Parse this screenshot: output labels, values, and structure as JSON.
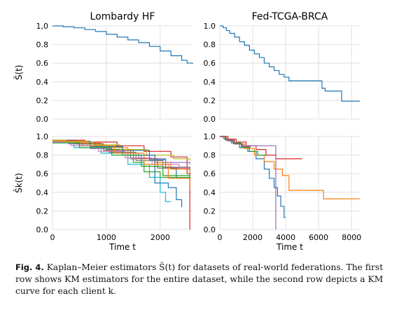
{
  "caption": {
    "label": "Fig. 4.",
    "text": "Kaplan–Meier estimators Ŝ(t) for datasets of real-world federations. The first row shows KM estimators for the entire dataset, while the second row depicts a KM curve for each client k."
  },
  "chart_data": [
    {
      "type": "line",
      "title": "Lombardy HF",
      "xlabel": "",
      "ylabel": "Ŝ(t)",
      "xlim": [
        0,
        2600
      ],
      "ylim": [
        0.0,
        1.0
      ],
      "xticks": [
        1000,
        2000
      ],
      "yticks": [
        "0.0",
        "0.2",
        "0.4",
        "0.6",
        "0.8",
        "1,0"
      ],
      "grid": true,
      "step": true,
      "series": [
        {
          "color": "#1f77b4",
          "x": [
            0,
            200,
            400,
            600,
            800,
            1000,
            1200,
            1400,
            1600,
            1800,
            2000,
            2200,
            2400,
            2500,
            2600
          ],
          "y": [
            1.0,
            0.99,
            0.98,
            0.96,
            0.94,
            0.91,
            0.88,
            0.85,
            0.82,
            0.78,
            0.73,
            0.68,
            0.63,
            0.6,
            0.59
          ]
        }
      ]
    },
    {
      "type": "line",
      "title": "Fed-TCGA-BRCA",
      "xlabel": "",
      "ylabel": "",
      "xlim": [
        0,
        8500
      ],
      "ylim": [
        0.0,
        1.0
      ],
      "xticks": [
        0,
        2000,
        4000,
        6000,
        8000
      ],
      "yticks": [
        "0.0",
        "0.2",
        "0.4",
        "0.6",
        "0.8",
        "1.0"
      ],
      "grid": true,
      "step": true,
      "series": [
        {
          "color": "#1f77b4",
          "x": [
            0,
            200,
            400,
            600,
            900,
            1200,
            1500,
            1800,
            2100,
            2400,
            2700,
            3000,
            3300,
            3600,
            3900,
            4200,
            6200,
            6400,
            7400,
            8500
          ],
          "y": [
            1.0,
            0.98,
            0.95,
            0.92,
            0.88,
            0.83,
            0.79,
            0.74,
            0.7,
            0.66,
            0.6,
            0.56,
            0.52,
            0.48,
            0.45,
            0.41,
            0.33,
            0.3,
            0.19,
            0.19
          ]
        }
      ]
    },
    {
      "type": "line",
      "title": "",
      "xlabel": "Time t",
      "ylabel": "Ŝk(t)",
      "xlim": [
        0,
        2600
      ],
      "ylim": [
        0.0,
        1.0
      ],
      "xticks": [
        0,
        1000,
        2000
      ],
      "yticks": [
        "0.0",
        "0.2",
        "0.4",
        "0.6",
        "0.8",
        "1.0"
      ],
      "grid": true,
      "step": true,
      "series": [
        {
          "color": "#1f77b4",
          "x": [
            0,
            300,
            800,
            1300,
            1800,
            2100,
            2300,
            2550
          ],
          "y": [
            0.95,
            0.93,
            0.9,
            0.85,
            0.75,
            0.66,
            0.55,
            0.5
          ]
        },
        {
          "color": "#ff7f0e",
          "x": [
            0,
            400,
            900,
            1400,
            1900,
            2200,
            2550
          ],
          "y": [
            0.95,
            0.93,
            0.88,
            0.8,
            0.72,
            0.65,
            0.6
          ]
        },
        {
          "color": "#2ca02c",
          "x": [
            0,
            500,
            1000,
            1500,
            1700,
            2000,
            2550
          ],
          "y": [
            0.94,
            0.9,
            0.86,
            0.72,
            0.62,
            0.56,
            0.46
          ]
        },
        {
          "color": "#d62728",
          "x": [
            0,
            600,
            1200,
            1700,
            2200,
            2500,
            2550
          ],
          "y": [
            0.96,
            0.94,
            0.9,
            0.84,
            0.78,
            0.6,
            0.0
          ]
        },
        {
          "color": "#9467bd",
          "x": [
            0,
            300,
            700,
            1100,
            1600,
            2100,
            2550
          ],
          "y": [
            0.95,
            0.92,
            0.87,
            0.82,
            0.76,
            0.72,
            0.7
          ]
        },
        {
          "color": "#8c564b",
          "x": [
            0,
            450,
            950,
            1450,
            1950,
            2550
          ],
          "y": [
            0.96,
            0.92,
            0.85,
            0.76,
            0.66,
            0.63
          ]
        },
        {
          "color": "#e377c2",
          "x": [
            0,
            350,
            850,
            1350,
            1850,
            2350,
            2550
          ],
          "y": [
            0.94,
            0.9,
            0.84,
            0.77,
            0.7,
            0.66,
            0.64
          ]
        },
        {
          "color": "#7f7f7f",
          "x": [
            0,
            550,
            1050,
            1550,
            2050,
            2550
          ],
          "y": [
            0.95,
            0.9,
            0.83,
            0.74,
            0.67,
            0.65
          ]
        },
        {
          "color": "#bcbd22",
          "x": [
            0,
            250,
            750,
            1250,
            1750,
            2250,
            2550
          ],
          "y": [
            0.96,
            0.94,
            0.91,
            0.86,
            0.8,
            0.76,
            0.74
          ]
        },
        {
          "color": "#17becf",
          "x": [
            0,
            400,
            900,
            1400,
            1800,
            2000,
            2100,
            2200
          ],
          "y": [
            0.93,
            0.88,
            0.82,
            0.7,
            0.56,
            0.4,
            0.3,
            0.3
          ]
        },
        {
          "color": "#1f77b4",
          "x": [
            0,
            700,
            1300,
            1900,
            2150,
            2300,
            2400
          ],
          "y": [
            0.95,
            0.89,
            0.8,
            0.5,
            0.45,
            0.32,
            0.24
          ]
        },
        {
          "color": "#2ca02c",
          "x": [
            0,
            500,
            1100,
            1650,
            2050,
            2550
          ],
          "y": [
            0.93,
            0.88,
            0.8,
            0.68,
            0.58,
            0.54
          ]
        },
        {
          "color": "#ff7f0e",
          "x": [
            0,
            650,
            1150,
            1700,
            2150,
            2550
          ],
          "y": [
            0.95,
            0.9,
            0.82,
            0.7,
            0.55,
            0.43
          ]
        }
      ]
    },
    {
      "type": "line",
      "title": "",
      "xlabel": "Time t",
      "ylabel": "",
      "xlim": [
        0,
        8500
      ],
      "ylim": [
        0.0,
        1.0
      ],
      "xticks": [
        0,
        2000,
        4000,
        6000,
        8000
      ],
      "yticks": [
        "0.0",
        "0.2",
        "0.4",
        "0.6",
        "0.8",
        "1.0"
      ],
      "grid": true,
      "step": true,
      "series": [
        {
          "color": "#1f77b4",
          "x": [
            0,
            300,
            700,
            1200,
            1700,
            2200,
            2700,
            3000,
            3300,
            3500,
            3700,
            3900,
            4000
          ],
          "y": [
            1.0,
            0.97,
            0.93,
            0.88,
            0.84,
            0.76,
            0.65,
            0.55,
            0.45,
            0.36,
            0.25,
            0.13,
            0.13
          ]
        },
        {
          "color": "#ff7f0e",
          "x": [
            0,
            400,
            900,
            1500,
            2100,
            2700,
            3300,
            3800,
            4200,
            6300,
            8500
          ],
          "y": [
            1.0,
            0.96,
            0.92,
            0.87,
            0.8,
            0.73,
            0.65,
            0.58,
            0.42,
            0.33,
            0.33
          ]
        },
        {
          "color": "#2ca02c",
          "x": [
            0,
            300,
            800,
            1300,
            1800,
            2300,
            2800
          ],
          "y": [
            1.0,
            0.97,
            0.93,
            0.88,
            0.84,
            0.8,
            0.8
          ]
        },
        {
          "color": "#d62728",
          "x": [
            0,
            500,
            1000,
            1600,
            2200,
            2800,
            3400,
            5000
          ],
          "y": [
            1.0,
            0.97,
            0.94,
            0.9,
            0.86,
            0.8,
            0.76,
            0.76
          ]
        },
        {
          "color": "#9467bd",
          "x": [
            0,
            200,
            500,
            900,
            1400,
            2000,
            2600,
            3400,
            3400
          ],
          "y": [
            1.0,
            0.98,
            0.95,
            0.92,
            0.9,
            0.9,
            0.9,
            0.9,
            0.0
          ]
        },
        {
          "color": "#8c564b",
          "x": [
            0,
            350,
            850,
            1350,
            1850
          ],
          "y": [
            1.0,
            0.96,
            0.92,
            0.89,
            0.88
          ]
        }
      ]
    }
  ]
}
